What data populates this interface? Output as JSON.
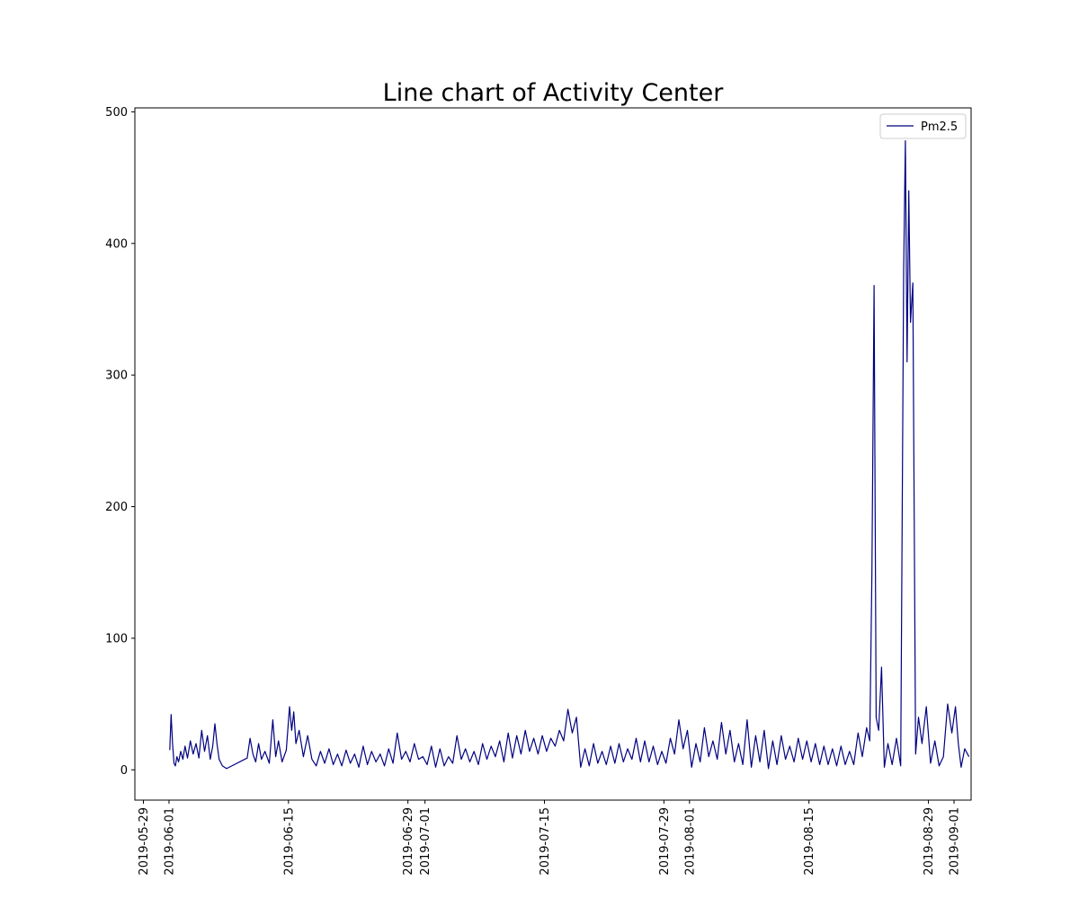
{
  "chart_data": {
    "type": "line",
    "title": "Line chart of Activity Center",
    "xlabel": "",
    "ylabel": "",
    "legend_position": "top-right",
    "grid": false,
    "x_type": "date",
    "xlim": [
      "2019-05-28",
      "2019-09-03"
    ],
    "ylim": [
      -23,
      503
    ],
    "x_ticks": [
      "2019-05-29",
      "2019-06-01",
      "2019-06-15",
      "2019-06-29",
      "2019-07-01",
      "2019-07-15",
      "2019-07-29",
      "2019-08-01",
      "2019-08-15",
      "2019-08-29",
      "2019-09-01"
    ],
    "y_ticks": [
      0,
      100,
      200,
      300,
      400,
      500
    ],
    "colors": {
      "series": "#000080"
    },
    "series": [
      {
        "name": "Pm2.5",
        "points": [
          [
            "2019-06-01",
            15
          ],
          [
            "2019-06-01",
            42
          ],
          [
            "2019-06-01",
            20
          ],
          [
            "2019-06-01",
            5
          ],
          [
            "2019-06-01",
            3
          ],
          [
            "2019-06-01",
            10
          ],
          [
            "2019-06-02",
            6
          ],
          [
            "2019-06-02",
            14
          ],
          [
            "2019-06-02",
            8
          ],
          [
            "2019-06-02",
            18
          ],
          [
            "2019-06-03",
            9
          ],
          [
            "2019-06-03",
            22
          ],
          [
            "2019-06-03",
            12
          ],
          [
            "2019-06-04",
            20
          ],
          [
            "2019-06-04",
            9
          ],
          [
            "2019-06-04",
            30
          ],
          [
            "2019-06-05",
            14
          ],
          [
            "2019-06-05",
            26
          ],
          [
            "2019-06-05",
            8
          ],
          [
            "2019-06-06",
            18
          ],
          [
            "2019-06-06",
            35
          ],
          [
            "2019-06-06",
            20
          ],
          [
            "2019-06-06",
            8
          ],
          [
            "2019-06-07",
            3
          ],
          [
            "2019-06-07",
            1
          ],
          [
            "2019-06-10",
            9
          ],
          [
            "2019-06-10",
            24
          ],
          [
            "2019-06-10",
            12
          ],
          [
            "2019-06-11",
            6
          ],
          [
            "2019-06-11",
            20
          ],
          [
            "2019-06-11",
            8
          ],
          [
            "2019-06-12",
            14
          ],
          [
            "2019-06-12",
            5
          ],
          [
            "2019-06-13",
            38
          ],
          [
            "2019-06-13",
            10
          ],
          [
            "2019-06-13",
            22
          ],
          [
            "2019-06-14",
            6
          ],
          [
            "2019-06-14",
            15
          ],
          [
            "2019-06-15",
            48
          ],
          [
            "2019-06-15",
            30
          ],
          [
            "2019-06-15",
            44
          ],
          [
            "2019-06-15",
            20
          ],
          [
            "2019-06-16",
            30
          ],
          [
            "2019-06-16",
            10
          ],
          [
            "2019-06-17",
            26
          ],
          [
            "2019-06-17",
            8
          ],
          [
            "2019-06-18",
            3
          ],
          [
            "2019-06-18",
            14
          ],
          [
            "2019-06-19",
            5
          ],
          [
            "2019-06-19",
            16
          ],
          [
            "2019-06-20",
            4
          ],
          [
            "2019-06-20",
            12
          ],
          [
            "2019-06-21",
            3
          ],
          [
            "2019-06-21",
            15
          ],
          [
            "2019-06-22",
            5
          ],
          [
            "2019-06-22",
            12
          ],
          [
            "2019-06-23",
            2
          ],
          [
            "2019-06-23",
            18
          ],
          [
            "2019-06-24",
            4
          ],
          [
            "2019-06-24",
            14
          ],
          [
            "2019-06-25",
            6
          ],
          [
            "2019-06-25",
            12
          ],
          [
            "2019-06-26",
            3
          ],
          [
            "2019-06-26",
            16
          ],
          [
            "2019-06-27",
            5
          ],
          [
            "2019-06-27",
            28
          ],
          [
            "2019-06-28",
            8
          ],
          [
            "2019-06-28",
            14
          ],
          [
            "2019-06-29",
            6
          ],
          [
            "2019-06-29",
            20
          ],
          [
            "2019-06-30",
            8
          ],
          [
            "2019-06-30",
            10
          ],
          [
            "2019-07-01",
            4
          ],
          [
            "2019-07-01",
            18
          ],
          [
            "2019-07-02",
            2
          ],
          [
            "2019-07-02",
            16
          ],
          [
            "2019-07-03",
            3
          ],
          [
            "2019-07-03",
            10
          ],
          [
            "2019-07-04",
            5
          ],
          [
            "2019-07-04",
            26
          ],
          [
            "2019-07-05",
            8
          ],
          [
            "2019-07-05",
            16
          ],
          [
            "2019-07-06",
            6
          ],
          [
            "2019-07-06",
            14
          ],
          [
            "2019-07-07",
            4
          ],
          [
            "2019-07-07",
            20
          ],
          [
            "2019-07-08",
            8
          ],
          [
            "2019-07-08",
            18
          ],
          [
            "2019-07-09",
            10
          ],
          [
            "2019-07-09",
            22
          ],
          [
            "2019-07-10",
            6
          ],
          [
            "2019-07-10",
            28
          ],
          [
            "2019-07-11",
            9
          ],
          [
            "2019-07-11",
            26
          ],
          [
            "2019-07-12",
            12
          ],
          [
            "2019-07-12",
            30
          ],
          [
            "2019-07-13",
            14
          ],
          [
            "2019-07-13",
            24
          ],
          [
            "2019-07-14",
            12
          ],
          [
            "2019-07-14",
            26
          ],
          [
            "2019-07-15",
            14
          ],
          [
            "2019-07-15",
            24
          ],
          [
            "2019-07-16",
            18
          ],
          [
            "2019-07-16",
            30
          ],
          [
            "2019-07-17",
            22
          ],
          [
            "2019-07-17",
            46
          ],
          [
            "2019-07-18",
            28
          ],
          [
            "2019-07-18",
            40
          ],
          [
            "2019-07-19",
            2
          ],
          [
            "2019-07-19",
            16
          ],
          [
            "2019-07-20",
            3
          ],
          [
            "2019-07-20",
            20
          ],
          [
            "2019-07-21",
            5
          ],
          [
            "2019-07-21",
            14
          ],
          [
            "2019-07-22",
            4
          ],
          [
            "2019-07-22",
            18
          ],
          [
            "2019-07-23",
            5
          ],
          [
            "2019-07-23",
            20
          ],
          [
            "2019-07-24",
            6
          ],
          [
            "2019-07-24",
            16
          ],
          [
            "2019-07-25",
            8
          ],
          [
            "2019-07-25",
            24
          ],
          [
            "2019-07-26",
            6
          ],
          [
            "2019-07-26",
            22
          ],
          [
            "2019-07-27",
            6
          ],
          [
            "2019-07-27",
            18
          ],
          [
            "2019-07-28",
            4
          ],
          [
            "2019-07-28",
            14
          ],
          [
            "2019-07-29",
            5
          ],
          [
            "2019-07-29",
            24
          ],
          [
            "2019-07-30",
            12
          ],
          [
            "2019-07-30",
            38
          ],
          [
            "2019-07-31",
            16
          ],
          [
            "2019-07-31",
            30
          ],
          [
            "2019-08-01",
            2
          ],
          [
            "2019-08-01",
            20
          ],
          [
            "2019-08-02",
            6
          ],
          [
            "2019-08-02",
            32
          ],
          [
            "2019-08-03",
            10
          ],
          [
            "2019-08-03",
            22
          ],
          [
            "2019-08-04",
            8
          ],
          [
            "2019-08-04",
            36
          ],
          [
            "2019-08-05",
            12
          ],
          [
            "2019-08-05",
            30
          ],
          [
            "2019-08-06",
            6
          ],
          [
            "2019-08-06",
            20
          ],
          [
            "2019-08-07",
            4
          ],
          [
            "2019-08-07",
            38
          ],
          [
            "2019-08-08",
            2
          ],
          [
            "2019-08-08",
            26
          ],
          [
            "2019-08-09",
            6
          ],
          [
            "2019-08-09",
            30
          ],
          [
            "2019-08-10",
            1
          ],
          [
            "2019-08-10",
            22
          ],
          [
            "2019-08-11",
            4
          ],
          [
            "2019-08-11",
            26
          ],
          [
            "2019-08-12",
            8
          ],
          [
            "2019-08-12",
            18
          ],
          [
            "2019-08-13",
            6
          ],
          [
            "2019-08-13",
            24
          ],
          [
            "2019-08-14",
            8
          ],
          [
            "2019-08-14",
            22
          ],
          [
            "2019-08-15",
            6
          ],
          [
            "2019-08-15",
            20
          ],
          [
            "2019-08-16",
            4
          ],
          [
            "2019-08-16",
            18
          ],
          [
            "2019-08-17",
            4
          ],
          [
            "2019-08-17",
            16
          ],
          [
            "2019-08-18",
            3
          ],
          [
            "2019-08-18",
            18
          ],
          [
            "2019-08-19",
            4
          ],
          [
            "2019-08-19",
            14
          ],
          [
            "2019-08-20",
            4
          ],
          [
            "2019-08-20",
            28
          ],
          [
            "2019-08-21",
            10
          ],
          [
            "2019-08-21",
            32
          ],
          [
            "2019-08-22",
            22
          ],
          [
            "2019-08-22",
            150
          ],
          [
            "2019-08-22",
            368
          ],
          [
            "2019-08-22",
            40
          ],
          [
            "2019-08-23",
            30
          ],
          [
            "2019-08-23",
            78
          ],
          [
            "2019-08-23",
            2
          ],
          [
            "2019-08-24",
            20
          ],
          [
            "2019-08-24",
            4
          ],
          [
            "2019-08-25",
            24
          ],
          [
            "2019-08-25",
            3
          ],
          [
            "2019-08-26",
            380
          ],
          [
            "2019-08-26",
            478
          ],
          [
            "2019-08-26",
            310
          ],
          [
            "2019-08-26",
            440
          ],
          [
            "2019-08-26",
            340
          ],
          [
            "2019-08-27",
            370
          ],
          [
            "2019-08-27",
            12
          ],
          [
            "2019-08-27",
            40
          ],
          [
            "2019-08-28",
            20
          ],
          [
            "2019-08-28",
            48
          ],
          [
            "2019-08-29",
            5
          ],
          [
            "2019-08-29",
            22
          ],
          [
            "2019-08-30",
            3
          ],
          [
            "2019-08-30",
            10
          ],
          [
            "2019-08-31",
            50
          ],
          [
            "2019-08-31",
            28
          ],
          [
            "2019-09-01",
            48
          ],
          [
            "2019-09-01",
            20
          ],
          [
            "2019-09-01",
            2
          ],
          [
            "2019-09-02",
            16
          ],
          [
            "2019-09-02",
            10
          ]
        ]
      }
    ]
  }
}
